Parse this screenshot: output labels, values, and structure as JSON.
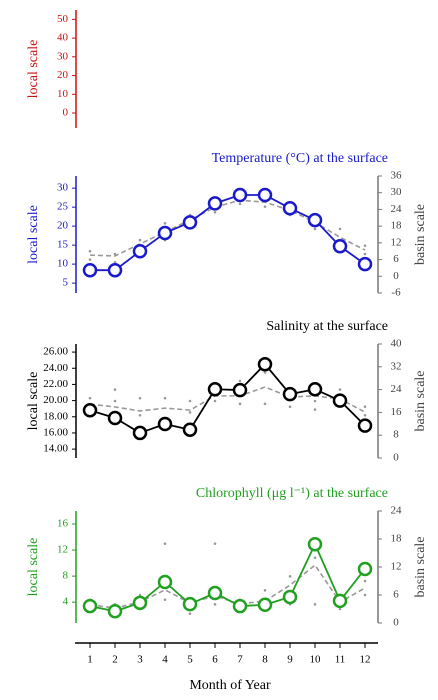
{
  "chart_data": [
    {
      "type": "line",
      "ylabel": "local scale",
      "color": "#cc1111",
      "ylim": [
        -8,
        55
      ],
      "yticks": [
        0,
        10,
        20,
        30,
        40,
        50
      ]
    },
    {
      "type": "line",
      "title": "Temperature (°C) at the surface",
      "ylabel": "local scale",
      "y2label": "basin scale",
      "color": "#1a1acc",
      "x": [
        1,
        2,
        3,
        4,
        5,
        6,
        7,
        8,
        9,
        10,
        11,
        12
      ],
      "xlim": [
        0.4,
        12.52
      ],
      "ylim": [
        2.4,
        33.2
      ],
      "yticks": [
        5,
        10,
        15,
        20,
        25,
        30
      ],
      "y2lim": [
        -6,
        36
      ],
      "y2ticks": [
        -6,
        0,
        6,
        12,
        18,
        24,
        30,
        36
      ],
      "series": [
        {
          "color": "#1a1acc",
          "values": [
            8.4,
            8.4,
            13.4,
            18.2,
            21,
            26,
            28.2,
            28.2,
            24.7,
            21.6,
            14.7,
            10
          ],
          "markers": true
        },
        {
          "color": "#999999",
          "values": [
            7.6,
            7.3,
            11.6,
            15.9,
            20.2,
            24.8,
            27.3,
            26.6,
            23.7,
            19.4,
            14,
            9.4
          ],
          "axis": "y2",
          "dash": true
        }
      ],
      "points": {
        "color": "#999999",
        "axis": "y2",
        "x": [
          1,
          1,
          2,
          2,
          3,
          3,
          4,
          4,
          5,
          5,
          6,
          6,
          7,
          7,
          8,
          8,
          9,
          9,
          10,
          10,
          11,
          11,
          12,
          12
        ],
        "y": [
          9,
          6,
          5,
          8,
          13,
          10,
          19,
          13,
          22,
          18,
          27,
          23,
          29,
          26,
          28,
          25,
          25,
          22,
          21,
          17,
          17,
          12,
          11,
          8
        ]
      }
    },
    {
      "type": "line",
      "title": "Salinity at the surface",
      "ylabel": "local scale",
      "y2label": "basin scale",
      "color": "#000000",
      "x": [
        1,
        2,
        3,
        4,
        5,
        6,
        7,
        8,
        9,
        10,
        11,
        12
      ],
      "xlim": [
        0.4,
        12.52
      ],
      "ylim": [
        12.9,
        27.0
      ],
      "yticks": [
        {
          "value": 14,
          "label": "14.00"
        },
        {
          "value": 16,
          "label": "16.00"
        },
        {
          "value": 18,
          "label": "18.00"
        },
        {
          "value": 20,
          "label": "20.00"
        },
        {
          "value": 22,
          "label": "22.00"
        },
        {
          "value": 24,
          "label": "24.00"
        },
        {
          "value": 26,
          "label": "26.00"
        }
      ],
      "y2lim": [
        0,
        40
      ],
      "y2ticks": [
        0,
        8,
        16,
        24,
        32,
        40
      ],
      "series": [
        {
          "color": "#000000",
          "values": [
            18.8,
            17.85,
            16,
            17.1,
            16.4,
            21.4,
            21.3,
            24.5,
            20.8,
            21.4,
            20,
            16.9
          ],
          "markers": true
        },
        {
          "color": "#999999",
          "values": [
            18.9,
            17.9,
            16.5,
            17.5,
            16.8,
            21.8,
            21.8,
            24.9,
            21.4,
            21.8,
            20.7,
            16.1
          ],
          "axis": "y2",
          "dash": true
        }
      ],
      "points": {
        "color": "#999999",
        "axis": "y2",
        "x": [
          1,
          1,
          2,
          2,
          2,
          3,
          3,
          4,
          4,
          5,
          5,
          6,
          6,
          7,
          7,
          8,
          8,
          9,
          9,
          10,
          10,
          11,
          11,
          12,
          12
        ],
        "y": [
          21,
          17,
          24,
          20,
          15,
          21,
          15,
          21,
          14,
          20,
          16,
          26,
          20,
          19,
          27,
          30,
          19,
          24,
          18,
          20,
          17,
          24,
          19,
          18,
          15
        ]
      }
    },
    {
      "type": "line",
      "title": "Chlorophyll (μg l⁻¹) at the surface",
      "ylabel": "local scale",
      "y2label": "basin scale",
      "xlabel": "Month of Year",
      "color": "#22a022",
      "x": [
        1,
        2,
        3,
        4,
        5,
        6,
        7,
        8,
        9,
        10,
        11,
        12
      ],
      "xlim": [
        0.4,
        12.52
      ],
      "xticks": [
        1,
        2,
        3,
        4,
        5,
        6,
        7,
        8,
        9,
        10,
        11,
        12
      ],
      "ylim": [
        0.8,
        18
      ],
      "yticks": [
        4,
        8,
        12,
        16
      ],
      "y2lim": [
        0,
        24
      ],
      "y2ticks": [
        0,
        6,
        12,
        18,
        24
      ],
      "series": [
        {
          "color": "#22a022",
          "values": [
            3.4,
            2.6,
            3.9,
            7.1,
            3.7,
            5.4,
            3.4,
            3.6,
            4.8,
            12.9,
            4.2,
            9.1
          ],
          "markers": true
        },
        {
          "color": "#999999",
          "values": [
            3.9,
            3.2,
            4.5,
            7.1,
            4.3,
            5.8,
            4.1,
            4.7,
            8.1,
            12.4,
            4.5,
            7.5
          ],
          "axis": "y2",
          "dash": true
        }
      ],
      "points": {
        "color": "#999999",
        "axis": "y2",
        "x": [
          1,
          1,
          2,
          2,
          3,
          3,
          4,
          4,
          5,
          5,
          6,
          6,
          7,
          7,
          8,
          8,
          9,
          9,
          10,
          10,
          11,
          11,
          12,
          12
        ],
        "y": [
          3,
          5,
          2,
          4,
          3,
          6,
          17,
          5,
          2,
          5,
          17,
          4,
          3,
          5,
          3,
          7,
          10,
          4,
          14,
          4,
          3,
          6,
          6,
          9
        ]
      }
    }
  ]
}
